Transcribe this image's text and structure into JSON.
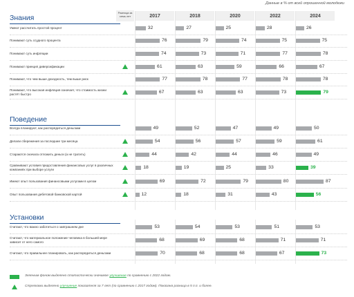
{
  "note": "Данные в % от всей опрошенной молодежи",
  "trend_header": "Разница за семь лет",
  "years": [
    "2017",
    "2018",
    "2020",
    "2022",
    "2024"
  ],
  "colors": {
    "bar": "#a7a9ac",
    "highlight": "#2bb24c",
    "section": "#1a4d8f"
  },
  "legend": {
    "box_pre": "Зеленым фоном выделено статистически значимое ",
    "box_em": "улучшение",
    "box_post": " по сравнению с 2022 годом.",
    "tri_pre": "Стрелками выделено ",
    "tri_em": "улучшение",
    "tri_post": " показателя за 7 лет (по сравнению с 2017 годом). Показана разница в 5 п.п. и более."
  },
  "chart_data": {
    "type": "bar",
    "xlim": [
      0,
      100
    ],
    "years": [
      "2017",
      "2018",
      "2020",
      "2022",
      "2024"
    ],
    "sections": [
      {
        "title": "Знания",
        "rows": [
          {
            "label": "Умеют рассчитать простой процент",
            "values": [
              32,
              27,
              25,
              28,
              26
            ],
            "trend": false,
            "highlight": false
          },
          {
            "label": "Понимают суть ссудного процента",
            "values": [
              76,
              79,
              74,
              75,
              75
            ],
            "trend": false,
            "highlight": false
          },
          {
            "label": "Понимают суть инфляции",
            "values": [
              74,
              73,
              71,
              77,
              78
            ],
            "trend": false,
            "highlight": false
          },
          {
            "label": "Понимают принцип диверсификации",
            "values": [
              61,
              63,
              59,
              66,
              67
            ],
            "trend": true,
            "highlight": false
          },
          {
            "label": "Понимают, что чем выше доходность, тем выше риск",
            "values": [
              77,
              78,
              77,
              78,
              78
            ],
            "trend": false,
            "highlight": false
          },
          {
            "label": "Понимают, что высокая инфляция означает, что стоимость жизни растёт быстро",
            "values": [
              67,
              63,
              63,
              73,
              79
            ],
            "trend": true,
            "highlight": true
          }
        ]
      },
      {
        "title": "Поведение",
        "rows": [
          {
            "label": "Всегда планируют, как распорядиться деньгами",
            "values": [
              49,
              52,
              47,
              49,
              50
            ],
            "trend": false,
            "highlight": false
          },
          {
            "label": "Делали сбережения за последние три месяца",
            "values": [
              54,
              56,
              57,
              59,
              61
            ],
            "trend": true,
            "highlight": false
          },
          {
            "label": "Стараются сначала отложить деньги (а не тратить)",
            "values": [
              44,
              42,
              44,
              46,
              49
            ],
            "trend": true,
            "highlight": false
          },
          {
            "label": "Сравнивают условия предоставления финансовых услуг в различных компаниях при выборе услуги",
            "values": [
              18,
              19,
              25,
              33,
              39
            ],
            "trend": true,
            "highlight": true
          },
          {
            "label": "Имеют опыт пользования финансовыми услугами в целом",
            "values": [
              69,
              72,
              79,
              80,
              87
            ],
            "trend": true,
            "highlight": false
          },
          {
            "label": "Опыт пользования дебетовой банковской картой",
            "values": [
              12,
              18,
              31,
              43,
              56
            ],
            "trend": true,
            "highlight": true
          }
        ]
      },
      {
        "title": "Установки",
        "rows": [
          {
            "label": "Считают, что важно заботиться о завтрашнем дне",
            "values": [
              53,
              54,
              53,
              51,
              53
            ],
            "trend": false,
            "highlight": false
          },
          {
            "label": "Считают, что материальное положение человека в большей мере зависит от него самого",
            "values": [
              68,
              69,
              68,
              71,
              71
            ],
            "trend": false,
            "highlight": false
          },
          {
            "label": "Считают, что правильнее планировать, как распорядиться деньгами",
            "values": [
              70,
              68,
              68,
              67,
              73
            ],
            "trend": false,
            "highlight": true
          }
        ]
      }
    ]
  }
}
